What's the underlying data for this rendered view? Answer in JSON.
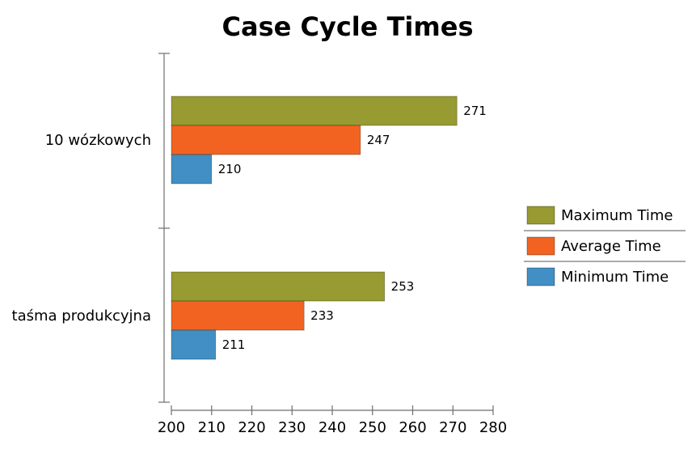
{
  "chart_data": {
    "type": "bar",
    "orientation": "horizontal",
    "title": "Case Cycle Times",
    "xlabel": "",
    "ylabel": "",
    "categories": [
      "10 wózkowych",
      "taśma produkcyjna"
    ],
    "series": [
      {
        "name": "Maximum Time",
        "values": [
          271,
          253
        ],
        "color": "#989a32"
      },
      {
        "name": "Average Time",
        "values": [
          247,
          233
        ],
        "color": "#f26322"
      },
      {
        "name": "Minimum Time",
        "values": [
          210,
          211
        ],
        "color": "#418fc4"
      }
    ],
    "xlim": [
      200,
      280
    ],
    "xticks": [
      200,
      210,
      220,
      230,
      240,
      250,
      260,
      270,
      280
    ],
    "grid": false,
    "legend_position": "right",
    "data_labels": true
  }
}
